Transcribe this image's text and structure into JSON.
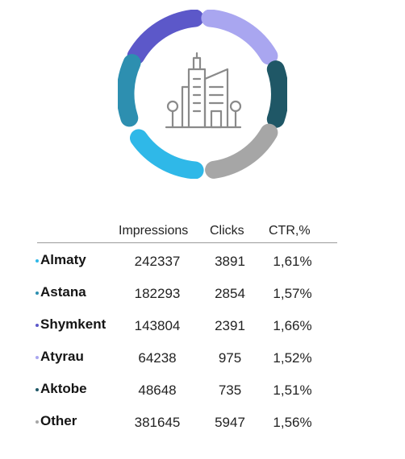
{
  "colors": {
    "segment_top_left": "#5c58c9",
    "segment_top_right": "#a9a6f0",
    "segment_right": "#1f5766",
    "segment_bottom_right": "#a6a6a6",
    "segment_bottom": "#2fb8e8",
    "segment_left": "#2d8fb0",
    "icon_stroke": "#8a8a8a"
  },
  "center_icon": "city-buildings-icon",
  "table": {
    "headers": {
      "impressions": "Impressions",
      "clicks": "Clicks",
      "ctr": "CTR,%"
    },
    "rows": [
      {
        "city": "Almaty",
        "impressions": "242337",
        "clicks": "3891",
        "ctr": "1,61%",
        "dot_color": "#2fb8e8"
      },
      {
        "city": "Astana",
        "impressions": "182293",
        "clicks": "2854",
        "ctr": "1,57%",
        "dot_color": "#2d8fb0"
      },
      {
        "city": "Shymkent",
        "impressions": "143804",
        "clicks": "2391",
        "ctr": "1,66%",
        "dot_color": "#5c58c9"
      },
      {
        "city": "Atyrau",
        "impressions": "64238",
        "clicks": "975",
        "ctr": "1,52%",
        "dot_color": "#a9a6f0"
      },
      {
        "city": "Aktobe",
        "impressions": "48648",
        "clicks": "735",
        "ctr": "1,51%",
        "dot_color": "#1f5766"
      },
      {
        "city": "Other",
        "impressions": "381645",
        "clicks": "5947",
        "ctr": "1,56%",
        "dot_color": "#a6a6a6"
      }
    ]
  }
}
